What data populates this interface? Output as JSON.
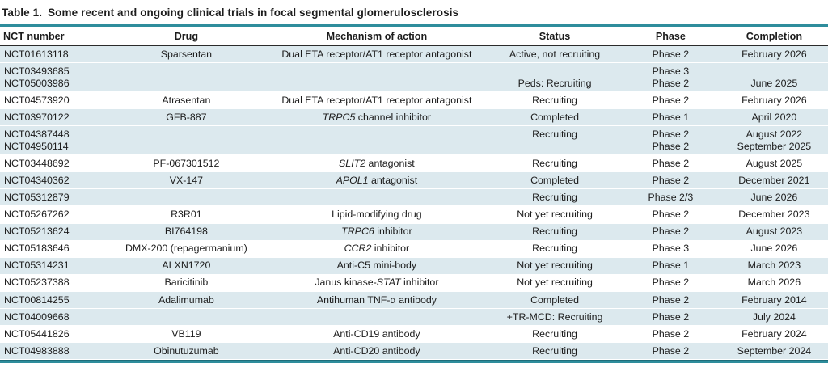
{
  "colors": {
    "accent_teal": "#2e8d9c",
    "accent_teal_dark": "#1d6d7a",
    "row_shade": "#dce9ee",
    "text": "#1c1c1c"
  },
  "table": {
    "title_label": "Table 1.",
    "title_text": "Some recent and ongoing clinical trials in focal segmental glomerulosclerosis",
    "columns": [
      {
        "key": "nct",
        "label": "NCT number",
        "align": "left"
      },
      {
        "key": "drug",
        "label": "Drug",
        "align": "center"
      },
      {
        "key": "mechanism",
        "label": "Mechanism of action",
        "align": "center"
      },
      {
        "key": "status",
        "label": "Status",
        "align": "center"
      },
      {
        "key": "phase",
        "label": "Phase",
        "align": "center"
      },
      {
        "key": "completion",
        "label": "Completion",
        "align": "center"
      }
    ],
    "rows": [
      {
        "nct": [
          "NCT01613118"
        ],
        "drug": "Sparsentan",
        "mechanism": [
          [
            "Dual ETA receptor/AT1 receptor antagonist",
            false
          ]
        ],
        "status": [
          "Active, not recruiting"
        ],
        "phase": [
          "Phase 2"
        ],
        "completion": [
          "February 2026"
        ],
        "shaded": true
      },
      {
        "nct": [
          "NCT03493685",
          "NCT05003986"
        ],
        "drug": "",
        "mechanism": [],
        "status": [
          "",
          "Peds: Recruiting"
        ],
        "phase": [
          "Phase 3",
          "Phase 2"
        ],
        "completion": [
          "",
          "June 2025"
        ],
        "shaded": true
      },
      {
        "nct": [
          "NCT04573920"
        ],
        "drug": "Atrasentan",
        "mechanism": [
          [
            "Dual ETA receptor/AT1 receptor antagonist",
            false
          ]
        ],
        "status": [
          "Recruiting"
        ],
        "phase": [
          "Phase 2"
        ],
        "completion": [
          "February 2026"
        ],
        "shaded": false
      },
      {
        "nct": [
          "NCT03970122"
        ],
        "drug": "GFB-887",
        "mechanism": [
          [
            "TRPC5",
            true
          ],
          [
            " channel inhibitor",
            false
          ]
        ],
        "status": [
          "Completed"
        ],
        "phase": [
          "Phase 1"
        ],
        "completion": [
          "April 2020"
        ],
        "shaded": true
      },
      {
        "nct": [
          "NCT04387448",
          "NCT04950114"
        ],
        "drug": "",
        "mechanism": [],
        "status": [
          "Recruiting",
          ""
        ],
        "phase": [
          "Phase 2",
          "Phase 2"
        ],
        "completion": [
          "August 2022",
          "September 2025"
        ],
        "shaded": true
      },
      {
        "nct": [
          "NCT03448692"
        ],
        "drug": "PF-067301512",
        "mechanism": [
          [
            "SLIT2",
            true
          ],
          [
            " antagonist",
            false
          ]
        ],
        "status": [
          "Recruiting"
        ],
        "phase": [
          "Phase 2"
        ],
        "completion": [
          "August 2025"
        ],
        "shaded": false
      },
      {
        "nct": [
          "NCT04340362"
        ],
        "drug": "VX-147",
        "mechanism": [
          [
            "APOL1",
            true
          ],
          [
            " antagonist",
            false
          ]
        ],
        "status": [
          "Completed"
        ],
        "phase": [
          "Phase 2"
        ],
        "completion": [
          "December 2021"
        ],
        "shaded": true
      },
      {
        "nct": [
          "NCT05312879"
        ],
        "drug": "",
        "mechanism": [],
        "status": [
          "Recruiting"
        ],
        "phase": [
          "Phase 2/3"
        ],
        "completion": [
          "June 2026"
        ],
        "shaded": true
      },
      {
        "nct": [
          "NCT05267262"
        ],
        "drug": "R3R01",
        "mechanism": [
          [
            "Lipid-modifying drug",
            false
          ]
        ],
        "status": [
          "Not yet recruiting"
        ],
        "phase": [
          "Phase 2"
        ],
        "completion": [
          "December 2023"
        ],
        "shaded": false
      },
      {
        "nct": [
          "NCT05213624"
        ],
        "drug": "BI764198",
        "mechanism": [
          [
            "TRPC6",
            true
          ],
          [
            " inhibitor",
            false
          ]
        ],
        "status": [
          "Recruiting"
        ],
        "phase": [
          "Phase 2"
        ],
        "completion": [
          "August 2023"
        ],
        "shaded": true
      },
      {
        "nct": [
          "NCT05183646"
        ],
        "drug": "DMX-200 (repagermanium)",
        "mechanism": [
          [
            "CCR2",
            true
          ],
          [
            " inhibitor",
            false
          ]
        ],
        "status": [
          "Recruiting"
        ],
        "phase": [
          "Phase 3"
        ],
        "completion": [
          "June 2026"
        ],
        "shaded": false
      },
      {
        "nct": [
          "NCT05314231"
        ],
        "drug": "ALXN1720",
        "mechanism": [
          [
            "Anti-C5 mini-body",
            false
          ]
        ],
        "status": [
          "Not yet recruiting"
        ],
        "phase": [
          "Phase 1"
        ],
        "completion": [
          "March 2023"
        ],
        "shaded": true
      },
      {
        "nct": [
          "NCT05237388"
        ],
        "drug": "Baricitinib",
        "mechanism": [
          [
            "Janus kinase-",
            false
          ],
          [
            "STAT",
            true
          ],
          [
            " inhibitor",
            false
          ]
        ],
        "status": [
          "Not yet recruiting"
        ],
        "phase": [
          "Phase 2"
        ],
        "completion": [
          "March 2026"
        ],
        "shaded": false
      },
      {
        "nct": [
          "NCT00814255"
        ],
        "drug": "Adalimumab",
        "mechanism": [
          [
            "Antihuman TNF-α antibody",
            false
          ]
        ],
        "status": [
          "Completed"
        ],
        "phase": [
          "Phase 2"
        ],
        "completion": [
          "February 2014"
        ],
        "shaded": true
      },
      {
        "nct": [
          "NCT04009668"
        ],
        "drug": "",
        "mechanism": [],
        "status": [
          "+TR-MCD: Recruiting"
        ],
        "phase": [
          "Phase 2"
        ],
        "completion": [
          "July 2024"
        ],
        "shaded": true
      },
      {
        "nct": [
          "NCT05441826"
        ],
        "drug": "VB119",
        "mechanism": [
          [
            "Anti-CD19 antibody",
            false
          ]
        ],
        "status": [
          "Recruiting"
        ],
        "phase": [
          "Phase 2"
        ],
        "completion": [
          "February 2024"
        ],
        "shaded": false
      },
      {
        "nct": [
          "NCT04983888"
        ],
        "drug": "Obinutuzumab",
        "mechanism": [
          [
            "Anti-CD20 antibody",
            false
          ]
        ],
        "status": [
          "Recruiting"
        ],
        "phase": [
          "Phase 2"
        ],
        "completion": [
          "September 2024"
        ],
        "shaded": true
      }
    ]
  }
}
